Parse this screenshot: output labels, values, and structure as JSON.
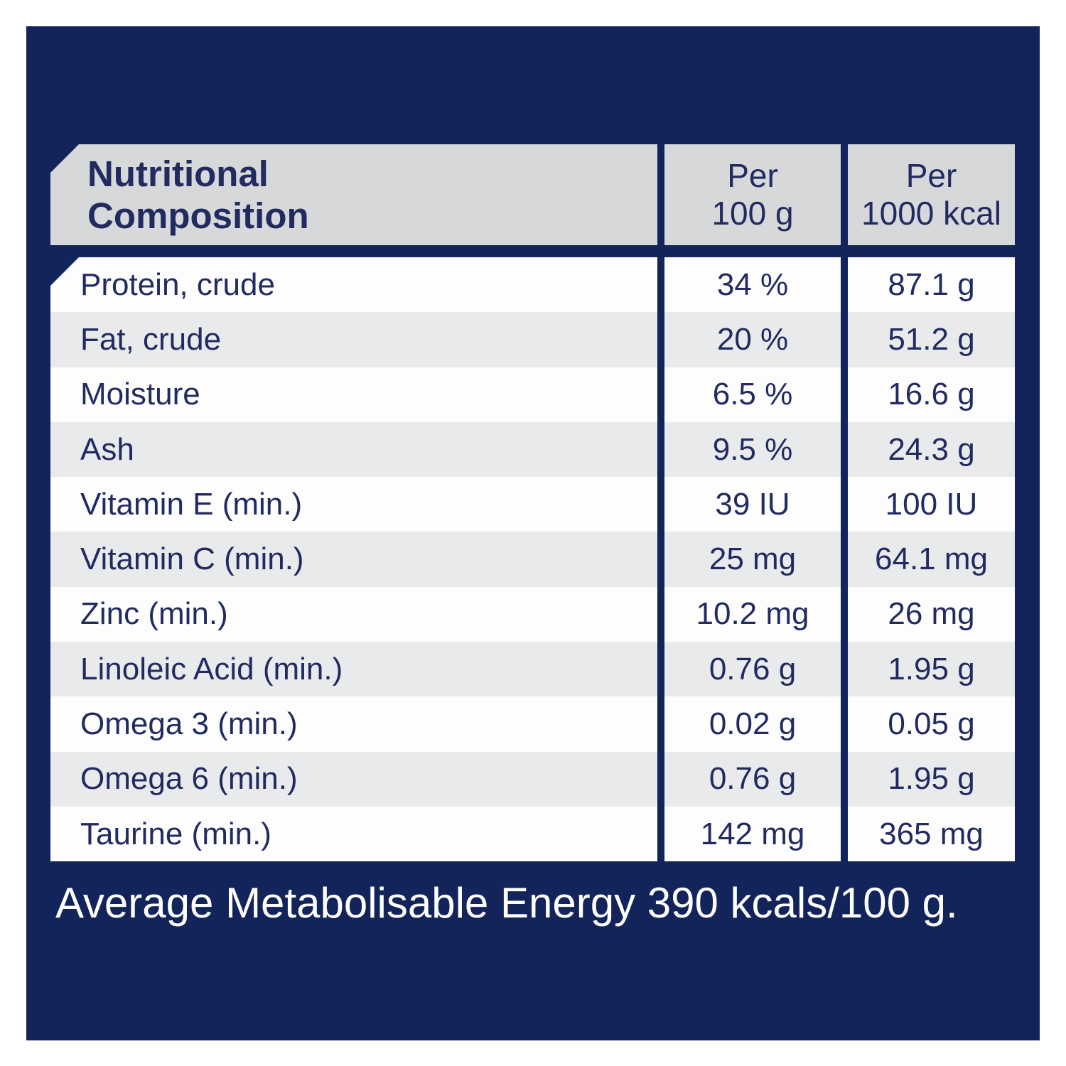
{
  "table": {
    "header": {
      "col1_lines": [
        "Nutritional",
        "Composition"
      ],
      "col2_lines": [
        "Per",
        "100 g"
      ],
      "col3_lines": [
        "Per",
        "1000 kcal"
      ]
    },
    "rows": [
      {
        "label": "Protein, crude",
        "per_100g": "34 %",
        "per_1000kcal": "87.1 g"
      },
      {
        "label": "Fat, crude",
        "per_100g": "20 %",
        "per_1000kcal": "51.2 g"
      },
      {
        "label": "Moisture",
        "per_100g": "6.5 %",
        "per_1000kcal": "16.6 g"
      },
      {
        "label": "Ash",
        "per_100g": "9.5 %",
        "per_1000kcal": "24.3 g"
      },
      {
        "label": "Vitamin E (min.)",
        "per_100g": "39 IU",
        "per_1000kcal": "100 IU"
      },
      {
        "label": "Vitamin C (min.)",
        "per_100g": "25 mg",
        "per_1000kcal": "64.1 mg"
      },
      {
        "label": "Zinc (min.)",
        "per_100g": "10.2 mg",
        "per_1000kcal": "26 mg"
      },
      {
        "label": "Linoleic Acid (min.)",
        "per_100g": "0.76 g",
        "per_1000kcal": "1.95 g"
      },
      {
        "label": "Omega 3 (min.)",
        "per_100g": "0.02 g",
        "per_1000kcal": "0.05 g"
      },
      {
        "label": "Omega 6 (min.)",
        "per_100g": "0.76 g",
        "per_1000kcal": "1.95 g"
      },
      {
        "label": "Taurine (min.)",
        "per_100g": "142 mg",
        "per_1000kcal": "365 mg"
      }
    ],
    "footer": "Average Metabolisable Energy 390 kcals/100 g."
  },
  "colors": {
    "panel_navy": "#12245a",
    "text_navy": "#212b60",
    "header_gray": "#d7d8da",
    "row_gray": "#e9eaec",
    "row_white": "#fdfdfe",
    "footer_text": "#ffffff"
  }
}
